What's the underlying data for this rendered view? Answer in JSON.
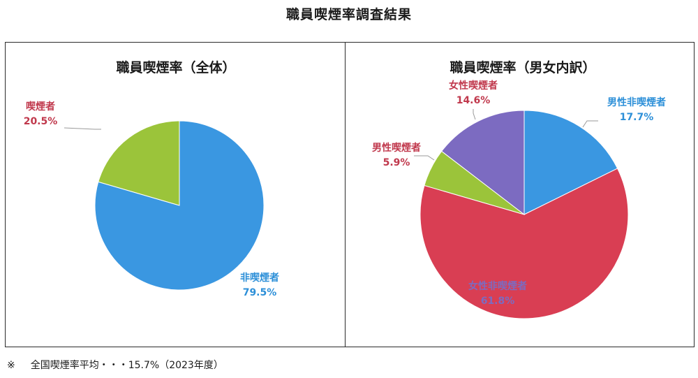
{
  "page": {
    "title": "職員喫煙率調査結果",
    "footnote_mark": "※",
    "footnote": "全国喫煙率平均・・・15.7%（2023年度）"
  },
  "colors": {
    "blue": "#3a97e1",
    "green": "#9bc43a",
    "red": "#d93e53",
    "purple": "#7c6bc1",
    "label_red": "#c0384c",
    "label_blue": "#2c8fd8",
    "label_purple": "#7c6bc1"
  },
  "chart_data": [
    {
      "type": "pie",
      "title": "職員喫煙率（全体）",
      "slices": [
        {
          "name": "非喫煙者",
          "value": 79.5,
          "label": "79.5%",
          "color": "#3a97e1",
          "label_color": "#2c8fd8"
        },
        {
          "name": "喫煙者",
          "value": 20.5,
          "label": "20.5%",
          "color": "#9bc43a",
          "label_color": "#c0384c"
        }
      ]
    },
    {
      "type": "pie",
      "title": "職員喫煙率（男女内訳）",
      "slices": [
        {
          "name": "男性非喫煙者",
          "value": 17.7,
          "label": "17.7%",
          "color": "#3a97e1",
          "label_color": "#2c8fd8"
        },
        {
          "name": "女性非喫煙者",
          "value": 61.8,
          "label": "61.8%",
          "color": "#d93e53",
          "label_color": "#7c6bc1"
        },
        {
          "name": "男性喫煙者",
          "value": 5.9,
          "label": "5.9%",
          "color": "#9bc43a",
          "label_color": "#c0384c"
        },
        {
          "name": "女性喫煙者",
          "value": 14.6,
          "label": "14.6%",
          "color": "#7c6bc1",
          "label_color": "#c0384c"
        }
      ]
    }
  ]
}
